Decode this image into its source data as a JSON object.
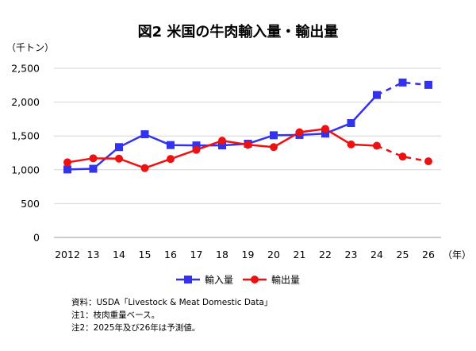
{
  "chart_data": {
    "type": "line",
    "title": "図2  米国の牛肉輸入量・輸出量",
    "ylabel": "（千トン）",
    "xlabel": "（年）",
    "x": [
      "2012",
      "13",
      "14",
      "15",
      "16",
      "17",
      "18",
      "19",
      "20",
      "21",
      "22",
      "23",
      "24",
      "25",
      "26"
    ],
    "ylim": [
      0,
      2500
    ],
    "yticks": [
      "0",
      "500",
      "1,000",
      "1,500",
      "2,000",
      "2,500"
    ],
    "yticks_values": [
      0,
      500,
      1000,
      1500,
      2000,
      2500
    ],
    "grid": true,
    "legend_position": "bottom",
    "forecast_from_index": 12,
    "series": [
      {
        "name": "輸入量",
        "color": "#3333ee",
        "marker": "square",
        "values": [
          1005,
          1015,
          1335,
          1525,
          1365,
          1360,
          1360,
          1385,
          1510,
          1515,
          1535,
          1690,
          2105,
          2290,
          2255
        ]
      },
      {
        "name": "輸出量",
        "color": "#ee1111",
        "marker": "circle",
        "values": [
          1110,
          1170,
          1165,
          1025,
          1160,
          1295,
          1430,
          1370,
          1335,
          1555,
          1605,
          1375,
          1355,
          1195,
          1125
        ]
      }
    ]
  },
  "notes": [
    "資料：USDA「Livestock & Meat Domestic Data」",
    "注1：枝肉重量ベース。",
    "注2：2025年及び26年は予測値。"
  ]
}
